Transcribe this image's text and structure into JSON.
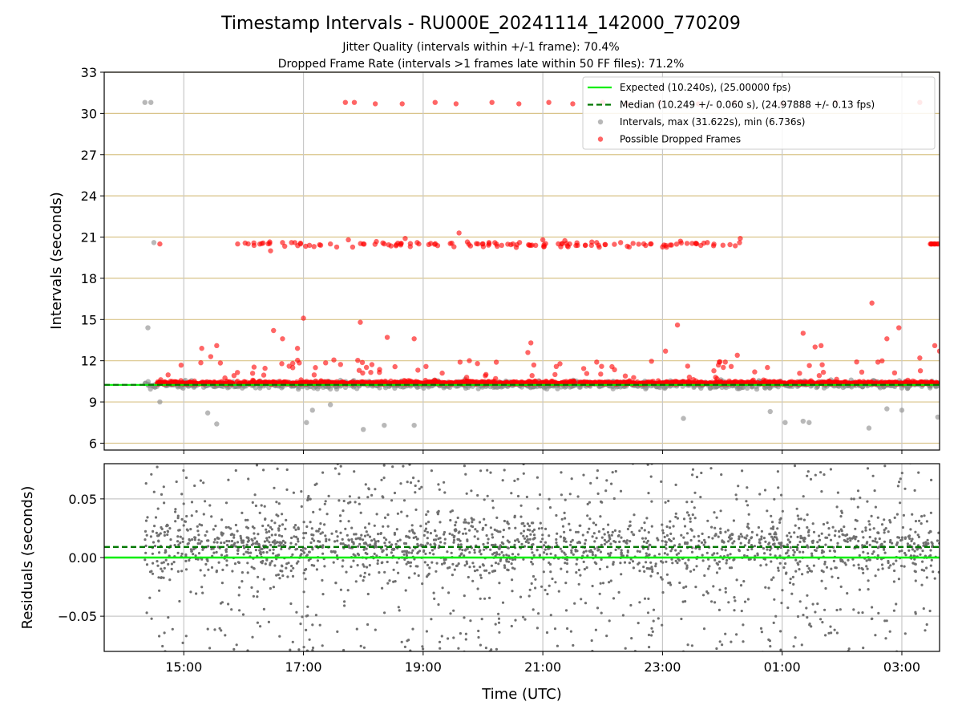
{
  "chart_data": {
    "type": "scatter",
    "title": "Timestamp Intervals - RU000E_20241114_142000_770209",
    "subtitles": [
      "Jitter Quality (intervals within +/-1 frame): 70.4%",
      "Dropped Frame Rate (intervals >1 frames late within 50 FF files): 71.2%"
    ],
    "xlabel": "Time (UTC)",
    "x_ticks": [
      "15:00",
      "17:00",
      "19:00",
      "21:00",
      "23:00",
      "01:00",
      "03:00"
    ],
    "x_range_hours": [
      13.67,
      27.63
    ],
    "grid": true,
    "panels": [
      {
        "name": "intervals",
        "ylabel": "Intervals (seconds)",
        "ylim": [
          5.5,
          33
        ],
        "yticks": [
          6,
          9,
          12,
          15,
          18,
          21,
          24,
          27,
          30,
          33
        ],
        "yticklabels": [
          "6",
          "9",
          "12",
          "15",
          "18",
          "21",
          "24",
          "27",
          "30",
          "33"
        ],
        "hlines": [
          {
            "value": 10.24,
            "style": "solid",
            "color": "#00ee00"
          },
          {
            "value": 10.249,
            "style": "dashed",
            "color": "#007700"
          }
        ],
        "legend_position": "top-right",
        "legend": [
          {
            "label": "Expected (10.240s), (25.00000 fps)",
            "kind": "solid-line",
            "color": "#00ee00"
          },
          {
            "label": "Median (10.249 +/- 0.060 s), (24.97888 +/- 0.13 fps)",
            "kind": "dashed-line",
            "color": "#007700"
          },
          {
            "label": "Intervals, max (31.622s), min (6.736s)",
            "kind": "marker",
            "color": "#888888"
          },
          {
            "label": "Possible Dropped Frames",
            "kind": "marker",
            "color": "#ff0000"
          }
        ],
        "intervals_max": 31.622,
        "intervals_min": 6.736,
        "dropped_frames_sample": [
          [
            14.6,
            20.5
          ],
          [
            15.9,
            20.5
          ],
          [
            16.45,
            20.0
          ],
          [
            16.65,
            20.6
          ],
          [
            16.8,
            20.6
          ],
          [
            16.95,
            20.5
          ],
          [
            17.1,
            20.4
          ],
          [
            17.45,
            20.5
          ],
          [
            17.75,
            20.8
          ],
          [
            18.0,
            20.5
          ],
          [
            18.35,
            20.5
          ],
          [
            18.7,
            20.9
          ],
          [
            18.9,
            20.6
          ],
          [
            19.6,
            21.3
          ],
          [
            20.1,
            20.6
          ],
          [
            20.5,
            20.5
          ],
          [
            21.0,
            20.8
          ],
          [
            21.45,
            20.5
          ],
          [
            21.9,
            20.6
          ],
          [
            22.3,
            20.6
          ],
          [
            22.8,
            20.5
          ],
          [
            23.3,
            20.7
          ],
          [
            23.75,
            20.6
          ],
          [
            24.3,
            20.9
          ],
          [
            27.5,
            20.5
          ],
          [
            27.6,
            20.5
          ],
          [
            17.7,
            30.8
          ],
          [
            17.85,
            30.8
          ],
          [
            18.2,
            30.7
          ],
          [
            18.65,
            30.7
          ],
          [
            19.2,
            30.8
          ],
          [
            19.55,
            30.7
          ],
          [
            20.15,
            30.8
          ],
          [
            20.6,
            30.7
          ],
          [
            21.1,
            30.8
          ],
          [
            21.5,
            30.7
          ],
          [
            22.0,
            30.8
          ],
          [
            22.4,
            30.7
          ],
          [
            22.95,
            30.8
          ],
          [
            23.6,
            30.7
          ],
          [
            24.2,
            30.8
          ],
          [
            25.0,
            30.7
          ],
          [
            25.9,
            30.8
          ],
          [
            27.3,
            30.8
          ],
          [
            15.3,
            12.9
          ],
          [
            15.45,
            12.3
          ],
          [
            15.55,
            13.1
          ],
          [
            16.5,
            14.2
          ],
          [
            16.65,
            13.6
          ],
          [
            16.9,
            12.9
          ],
          [
            17.0,
            15.1
          ],
          [
            17.2,
            11.5
          ],
          [
            17.95,
            14.8
          ],
          [
            18.4,
            13.7
          ],
          [
            18.85,
            13.6
          ],
          [
            20.05,
            11.0
          ],
          [
            20.75,
            12.6
          ],
          [
            20.8,
            13.3
          ],
          [
            21.9,
            11.9
          ],
          [
            23.05,
            12.7
          ],
          [
            23.25,
            14.6
          ],
          [
            24.05,
            11.9
          ],
          [
            24.25,
            12.4
          ],
          [
            25.35,
            14.0
          ],
          [
            25.55,
            13.0
          ],
          [
            25.65,
            13.1
          ],
          [
            26.5,
            16.2
          ],
          [
            26.6,
            11.9
          ],
          [
            26.75,
            13.6
          ],
          [
            26.95,
            14.4
          ],
          [
            27.3,
            12.2
          ],
          [
            27.55,
            13.1
          ],
          [
            27.63,
            12.7
          ]
        ],
        "gray_outliers_sample": [
          [
            14.35,
            30.8
          ],
          [
            14.45,
            30.8
          ],
          [
            14.5,
            20.6
          ],
          [
            14.4,
            14.4
          ],
          [
            14.6,
            9.0
          ],
          [
            15.4,
            8.2
          ],
          [
            15.55,
            7.4
          ],
          [
            17.05,
            7.5
          ],
          [
            17.15,
            8.4
          ],
          [
            17.45,
            8.8
          ],
          [
            18.0,
            7.0
          ],
          [
            18.35,
            7.3
          ],
          [
            18.85,
            7.3
          ],
          [
            24.8,
            8.3
          ],
          [
            25.05,
            7.5
          ],
          [
            25.35,
            7.6
          ],
          [
            25.45,
            7.5
          ],
          [
            26.45,
            7.1
          ],
          [
            26.75,
            8.5
          ],
          [
            27.0,
            8.4
          ],
          [
            27.6,
            7.9
          ],
          [
            23.35,
            7.8
          ]
        ]
      },
      {
        "name": "residuals",
        "ylabel": "Residuals (seconds)",
        "ylim": [
          -0.08,
          0.08
        ],
        "yticks": [
          -0.05,
          0.0,
          0.05
        ],
        "yticklabels": [
          "−0.05",
          "0.00",
          "0.05"
        ],
        "hlines": [
          {
            "value": 0.0,
            "style": "solid",
            "color": "#00ee00"
          },
          {
            "value": 0.009,
            "style": "dashed",
            "color": "#007700"
          }
        ],
        "points_note_count": 2400
      }
    ]
  }
}
